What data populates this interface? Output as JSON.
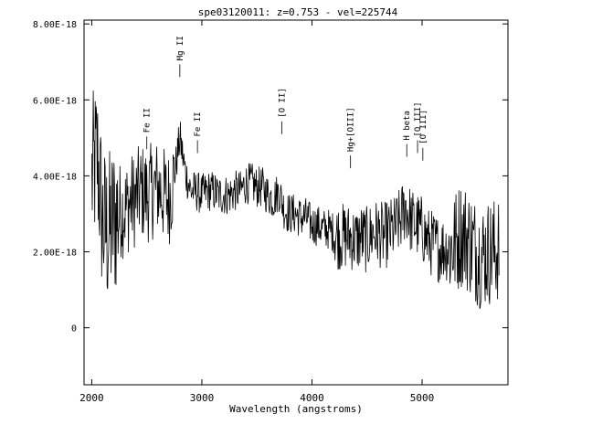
{
  "chart_data": {
    "type": "line",
    "title": "spe03120011: z=0.753 - vel=225744",
    "xlabel": "Wavelength (angstroms)",
    "ylabel": "",
    "xlim": [
      1930,
      5780
    ],
    "ylim": [
      -1.5e-18,
      8.1e-18
    ],
    "x_ticks": [
      {
        "value": 2000,
        "label": "2000"
      },
      {
        "value": 3000,
        "label": "3000"
      },
      {
        "value": 4000,
        "label": "4000"
      },
      {
        "value": 5000,
        "label": "5000"
      }
    ],
    "y_ticks": [
      {
        "value": 0,
        "label": "0"
      },
      {
        "value": 2e-18,
        "label": "2.00E-18"
      },
      {
        "value": 4e-18,
        "label": "4.00E-18"
      },
      {
        "value": 6e-18,
        "label": "6.00E-18"
      },
      {
        "value": 8e-18,
        "label": "8.00E-18"
      }
    ],
    "grid": false,
    "annotations": [
      {
        "text": "Mg II",
        "x": 2800,
        "y": 6.6e-18
      },
      {
        "text": "Fe II",
        "x": 2500,
        "y": 4.7e-18
      },
      {
        "text": "Fe II",
        "x": 2960,
        "y": 4.6e-18
      },
      {
        "text": "[O II]",
        "x": 3727,
        "y": 5.1e-18
      },
      {
        "text": "Hg+[OIII]",
        "x": 4350,
        "y": 4.2e-18
      },
      {
        "text": "H beta",
        "x": 4861,
        "y": 4.5e-18
      },
      {
        "text": "[O III]",
        "x": 4959,
        "y": 4.6e-18
      },
      {
        "text": "[O III]",
        "x": 5007,
        "y": 4.4e-18
      }
    ],
    "series": [
      {
        "color": "#000000",
        "x": [
          2000,
          2050,
          2100,
          2150,
          2200,
          2250,
          2300,
          2350,
          2400,
          2450,
          2500,
          2550,
          2600,
          2650,
          2700,
          2750,
          2800,
          2850,
          2900,
          2950,
          3000,
          3050,
          3100,
          3150,
          3200,
          3250,
          3300,
          3350,
          3400,
          3450,
          3500,
          3550,
          3600,
          3650,
          3700,
          3750,
          3800,
          3850,
          3900,
          3950,
          4000,
          4050,
          4100,
          4150,
          4200,
          4250,
          4300,
          4350,
          4400,
          4450,
          4500,
          4550,
          4600,
          4650,
          4700,
          4750,
          4800,
          4850,
          4900,
          4950,
          5000,
          5050,
          5100,
          5150,
          5200,
          5250,
          5300,
          5350,
          5400,
          5450,
          5500,
          5550,
          5600,
          5650,
          5700
        ],
        "y": [
          3.9e-18,
          4.5e-18,
          2.7e-18,
          2.5e-18,
          2.8e-18,
          3.1e-18,
          3.1e-18,
          3.3e-18,
          3.4e-18,
          3.6e-18,
          3.5e-18,
          3.6e-18,
          3.7e-18,
          3.5e-18,
          3.4e-18,
          4e-18,
          5e-18,
          4.1e-18,
          3.6e-18,
          3.6e-18,
          3.5e-18,
          3.6e-18,
          3.6e-18,
          3.5e-18,
          3.5e-18,
          3.5e-18,
          3.6e-18,
          3.6e-18,
          3.8e-18,
          3.8e-18,
          3.7e-18,
          3.7e-18,
          3.5e-18,
          3.4e-18,
          3.6e-18,
          3.1e-18,
          3e-18,
          3e-18,
          2.9e-18,
          2.9e-18,
          2.7e-18,
          2.7e-18,
          2.6e-18,
          2.6e-18,
          2.5e-18,
          2.4e-18,
          2.4e-18,
          2.4e-18,
          2.3e-18,
          2.4e-18,
          2.3e-18,
          2.5e-18,
          2.5e-18,
          2.4e-18,
          2.5e-18,
          2.6e-18,
          2.8e-18,
          3.2e-18,
          2.8e-18,
          2.7e-18,
          2.6e-18,
          2.3e-18,
          2.2e-18,
          2.1e-18,
          2.1e-18,
          2.1e-18,
          2.2e-18,
          2.5e-18,
          2.4e-18,
          2.2e-18,
          2e-18,
          1.9e-18,
          2e-18,
          2e-18,
          2.1e-18
        ]
      }
    ]
  }
}
